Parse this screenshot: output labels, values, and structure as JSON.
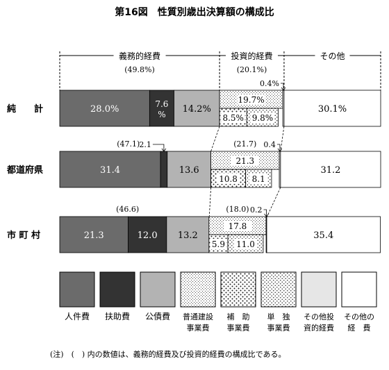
{
  "chart_data": {
    "type": "bar",
    "orientation": "horizontal",
    "stacked": true,
    "percent_stacked": true,
    "title": "第16図　性質別歳出決算額の構成比",
    "categories": [
      "純　　計",
      "都道府県",
      "市 町 村"
    ],
    "group_headers": [
      {
        "label": "義務的経費",
        "shares": [
          "(49.8%)",
          "",
          ""
        ]
      },
      {
        "label": "投資的経費",
        "shares": [
          "(20.1%)",
          "",
          ""
        ]
      },
      {
        "label": "その他",
        "shares": [
          "",
          "",
          ""
        ]
      }
    ],
    "series": [
      {
        "name": "人件費",
        "color": "#6b6b6b",
        "pattern": "solid-dark-gray",
        "values": [
          28.0,
          31.4,
          21.3
        ],
        "labels": [
          "28.0%",
          "31.4",
          "21.3"
        ],
        "label_color": "#ffffff"
      },
      {
        "name": "扶助費",
        "color": "#333333",
        "pattern": "solid-black",
        "values": [
          7.6,
          2.1,
          12.0
        ],
        "labels": [
          "7.6%",
          "2.1",
          "12.0"
        ],
        "label_color": "#ffffff"
      },
      {
        "name": "公債費",
        "color": "#b3b3b3",
        "pattern": "solid-light-gray",
        "values": [
          14.2,
          13.6,
          13.2
        ],
        "labels": [
          "14.2%",
          "13.6",
          "13.2"
        ],
        "label_color": "#000000"
      },
      {
        "name": "普通建設事業費",
        "pattern": "fine-dots",
        "values": [
          null,
          null,
          null
        ],
        "values_known": false
      },
      {
        "name": "補助事業費",
        "pattern": "coarse-dots",
        "values": [
          8.5,
          10.8,
          5.9
        ],
        "labels": [
          "8.5%",
          "10.8",
          "5.9"
        ]
      },
      {
        "name": "単独事業費",
        "pattern": "medium-dots",
        "values": [
          9.8,
          8.1,
          11.0
        ],
        "labels": [
          "9.8%",
          "8.1",
          "11.0"
        ]
      },
      {
        "name": "その他投資的経費",
        "color": "#e6e6e6",
        "pattern": "solid-pale-gray",
        "values": [
          0.4,
          0.4,
          0.2
        ],
        "labels": [
          "0.4%",
          "0.4",
          "0.2"
        ]
      },
      {
        "name": "その他の経費",
        "color": "#ffffff",
        "pattern": "white",
        "values": [
          30.1,
          31.2,
          35.4
        ],
        "labels": [
          "30.1%",
          "31.2",
          "35.4"
        ]
      }
    ],
    "construction_totals": {
      "values": [
        19.7,
        21.3,
        17.8
      ],
      "labels": [
        "19.7%",
        "21.3",
        "17.8"
      ]
    },
    "mandatory_totals": {
      "values": [
        49.8,
        47.1,
        46.6
      ],
      "labels": [
        "(49.8%)",
        "(47.1)",
        "(46.6)"
      ]
    },
    "investment_totals": {
      "values": [
        20.1,
        21.7,
        18.0
      ],
      "labels": [
        "(20.1%)",
        "(21.7)",
        "(18.0)"
      ]
    },
    "legend": {
      "position": "bottom",
      "items": [
        {
          "label_lines": [
            "人件費"
          ],
          "pattern": "solid-dark-gray"
        },
        {
          "label_lines": [
            "扶助費"
          ],
          "pattern": "solid-black"
        },
        {
          "label_lines": [
            "公債費"
          ],
          "pattern": "solid-light-gray"
        },
        {
          "label_lines": [
            "普通建設",
            "事業費"
          ],
          "pattern": "fine-dots"
        },
        {
          "label_lines": [
            "補　助",
            "事業費"
          ],
          "pattern": "coarse-dots"
        },
        {
          "label_lines": [
            "単　独",
            "事業費"
          ],
          "pattern": "medium-dots"
        },
        {
          "label_lines": [
            "その他投",
            "資的経費"
          ],
          "pattern": "solid-pale-gray"
        },
        {
          "label_lines": [
            "その他の",
            "経　費"
          ],
          "pattern": "white"
        }
      ]
    },
    "note": "(注)　(　) 内の数値は、義務的経費及び投資的経費の構成比である。",
    "xlim": [
      0,
      100
    ],
    "grid": false
  }
}
